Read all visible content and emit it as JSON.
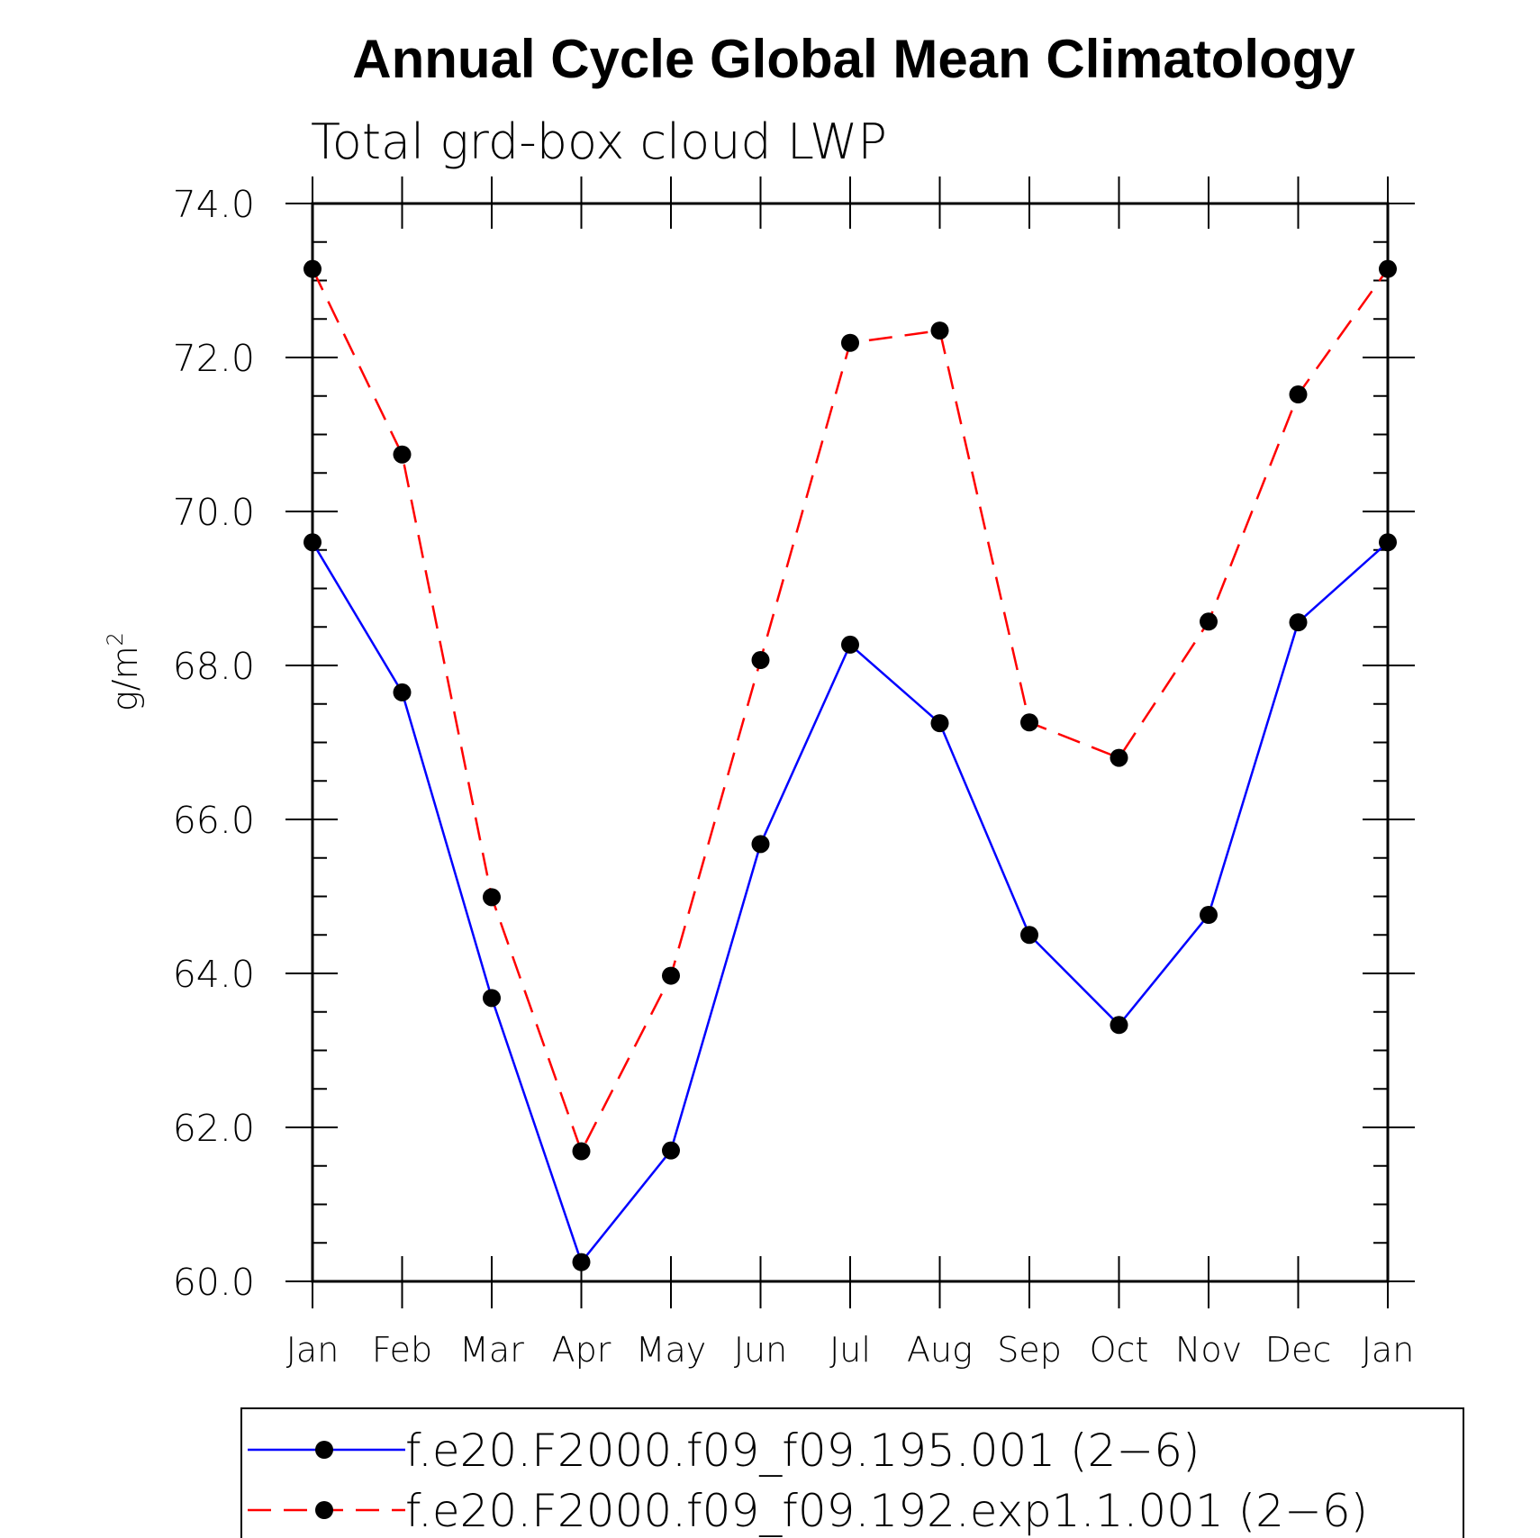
{
  "chart_data": {
    "type": "line",
    "title": "Annual Cycle Global Mean Climatology",
    "subtitle": "Total grd-box cloud LWP",
    "ylabel": "g/m",
    "ylabel_sup": "2",
    "xlabel": "",
    "ylim": [
      60,
      74
    ],
    "yticks": [
      "60.0",
      "62.0",
      "64.0",
      "66.0",
      "68.0",
      "70.0",
      "72.0",
      "74.0"
    ],
    "categories": [
      "Jan",
      "Feb",
      "Mar",
      "Apr",
      "May",
      "Jun",
      "Jul",
      "Aug",
      "Sep",
      "Oct",
      "Nov",
      "Dec",
      "Jan"
    ],
    "series": [
      {
        "name": "f.e20.F2000.f09_f09.195.001 (2-6)",
        "legend_label": "f.e20.F2000.f09_f09.195.001 (2−6)",
        "color": "#0000ff",
        "dash": "solid",
        "values": [
          69.6,
          67.65,
          63.68,
          60.25,
          61.7,
          65.68,
          68.27,
          67.25,
          64.5,
          63.33,
          64.76,
          68.56,
          69.6
        ]
      },
      {
        "name": "f.e20.F2000.f09_f09.192.exp1.1.001 (2-6)",
        "legend_label": "f.e20.F2000.f09_f09.192.exp1.1.001 (2−6)",
        "color": "#ff0000",
        "dash": "dashed",
        "values": [
          73.15,
          70.74,
          64.99,
          61.69,
          63.97,
          68.07,
          72.19,
          72.35,
          67.26,
          66.8,
          68.57,
          71.52,
          73.15
        ]
      }
    ],
    "marker_color": "#000000",
    "grid": false,
    "legend_position": "bottom"
  }
}
